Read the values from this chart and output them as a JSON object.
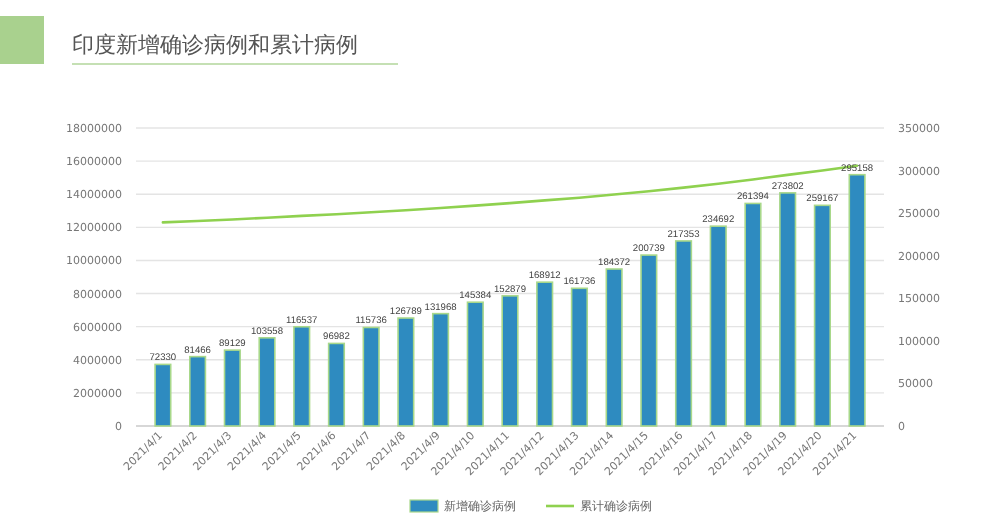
{
  "chart_data": {
    "type": "bar",
    "title": "印度新增确诊病例和累计病例",
    "categories": [
      "2021/4/1",
      "2021/4/2",
      "2021/4/3",
      "2021/4/4",
      "2021/4/5",
      "2021/4/6",
      "2021/4/7",
      "2021/4/8",
      "2021/4/9",
      "2021/4/10",
      "2021/4/11",
      "2021/4/12",
      "2021/4/13",
      "2021/4/14",
      "2021/4/15",
      "2021/4/16",
      "2021/4/17",
      "2021/4/18",
      "2021/4/19",
      "2021/4/20",
      "2021/4/21"
    ],
    "series": [
      {
        "name": "新增确诊病例",
        "axis": "y2",
        "color": "#2e8bc0",
        "values": [
          72330,
          81466,
          89129,
          103558,
          116537,
          96982,
          115736,
          126789,
          131968,
          145384,
          152879,
          168912,
          161736,
          184372,
          200739,
          217353,
          234692,
          261394,
          273802,
          259167,
          295158
        ],
        "value_labels": [
          "72330",
          "81466",
          "89129",
          "103558",
          "116537",
          "96982",
          "115736",
          "126789",
          "131968",
          "145384",
          "152879",
          "168912",
          "161736",
          "184372",
          "200739",
          "217353",
          "234692",
          "261394",
          "273802",
          "259167",
          "295158"
        ]
      },
      {
        "name": "累计确诊病例",
        "type": "line",
        "axis": "y",
        "color": "#8fd14f",
        "values": [
          12300000,
          12380000,
          12470000,
          12580000,
          12690000,
          12790000,
          12910000,
          13030000,
          13170000,
          13310000,
          13460000,
          13630000,
          13790000,
          13980000,
          14180000,
          14400000,
          14630000,
          14890000,
          15170000,
          15430000,
          15720000
        ]
      }
    ],
    "ylim": [
      0,
      18000000
    ],
    "yticks": [
      0,
      2000000,
      4000000,
      6000000,
      8000000,
      10000000,
      12000000,
      14000000,
      16000000,
      18000000
    ],
    "y2lim": [
      0,
      350000
    ],
    "y2ticks": [
      0,
      50000,
      100000,
      150000,
      200000,
      250000,
      300000,
      350000
    ],
    "grid": "y",
    "legend": "bottom"
  }
}
